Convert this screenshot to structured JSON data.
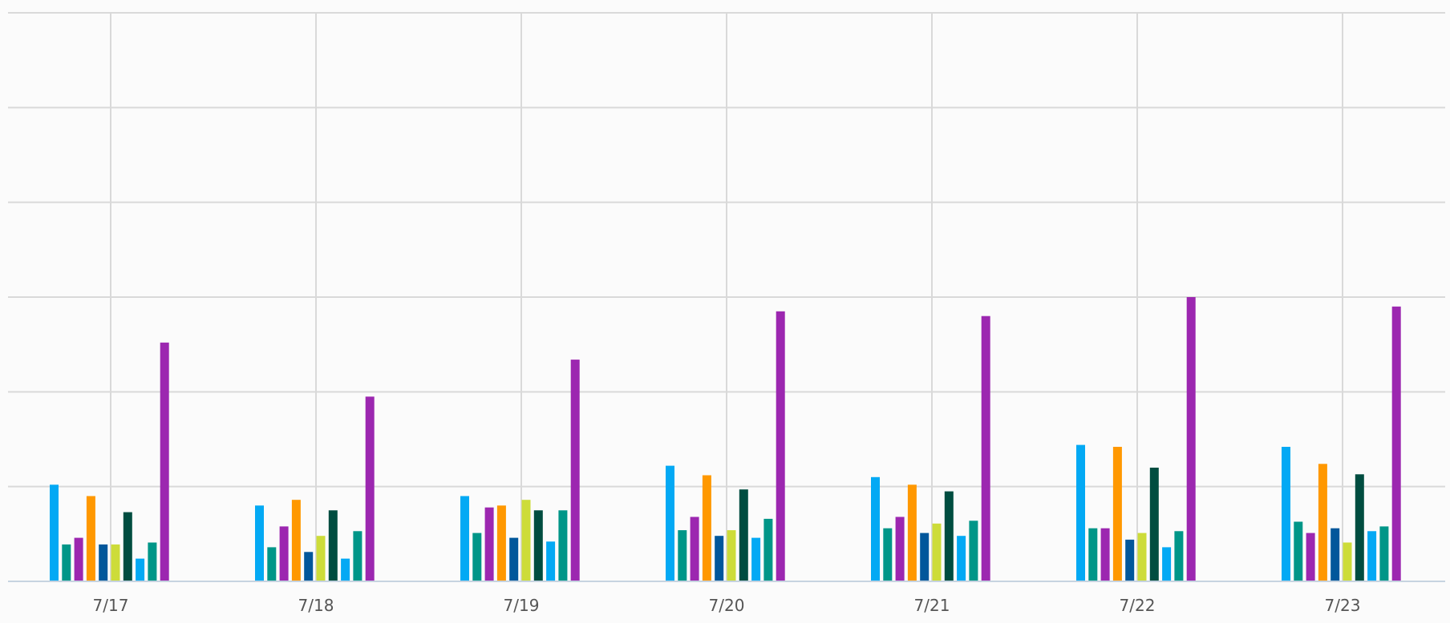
{
  "chart_data": {
    "type": "bar",
    "title": "",
    "xlabel": "",
    "ylabel": "",
    "ylim": [
      0,
      6
    ],
    "grid": true,
    "legend": "none",
    "categories": [
      "7/17",
      "7/18",
      "7/19",
      "7/20",
      "7/21",
      "7/22",
      "7/23"
    ],
    "series": [
      {
        "color": "#03a9f4",
        "values": [
          1.02,
          0.8,
          0.9,
          1.22,
          1.1,
          1.44,
          1.42
        ]
      },
      {
        "color": "#009688",
        "values": [
          0.39,
          0.36,
          0.51,
          0.54,
          0.56,
          0.56,
          0.63
        ]
      },
      {
        "color": "#9c27b0",
        "values": [
          0.46,
          0.58,
          0.78,
          0.68,
          0.68,
          0.56,
          0.51
        ]
      },
      {
        "color": "#ff9800",
        "values": [
          0.9,
          0.86,
          0.8,
          1.12,
          1.02,
          1.42,
          1.24
        ]
      },
      {
        "color": "#01579b",
        "values": [
          0.39,
          0.31,
          0.46,
          0.48,
          0.51,
          0.44,
          0.56
        ]
      },
      {
        "color": "#cddc39",
        "values": [
          0.39,
          0.48,
          0.86,
          0.54,
          0.61,
          0.51,
          0.41
        ]
      },
      {
        "color": "#004d40",
        "values": [
          0.73,
          0.75,
          0.75,
          0.97,
          0.95,
          1.2,
          1.13
        ]
      },
      {
        "color": "#03a9f4",
        "values": [
          0.24,
          0.24,
          0.42,
          0.46,
          0.48,
          0.36,
          0.53
        ]
      },
      {
        "color": "#009688",
        "values": [
          0.41,
          0.53,
          0.75,
          0.66,
          0.64,
          0.53,
          0.58
        ]
      },
      {
        "color": "#9c27b0",
        "values": [
          2.52,
          1.95,
          2.34,
          2.85,
          2.8,
          3.0,
          2.9
        ]
      }
    ]
  }
}
